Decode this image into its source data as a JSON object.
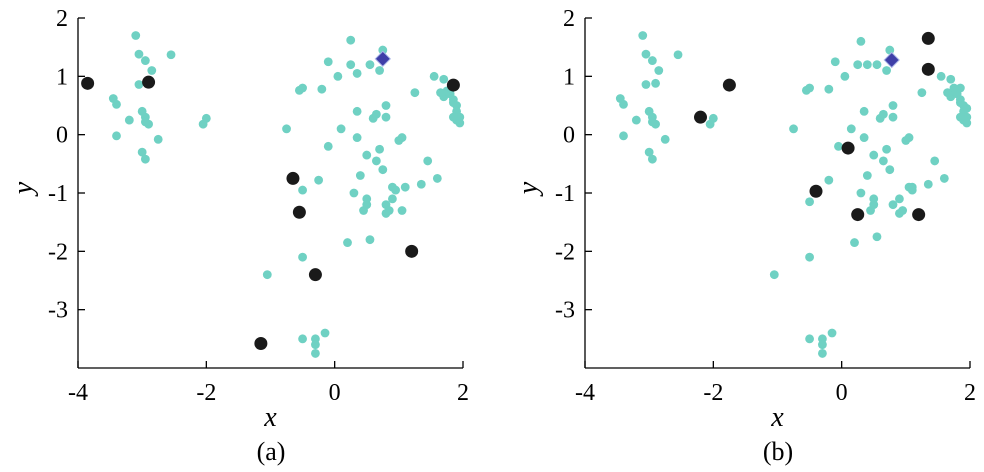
{
  "colors": {
    "background": "#dcf2ef",
    "open": "#ffffff",
    "points": "#6fd1c3",
    "selected": "#1a1a1a",
    "target": "#3f3fa8"
  },
  "chart_data": [
    {
      "type": "scatter",
      "caption": "(a)",
      "xlabel": "x",
      "ylabel": "y",
      "xlim": [
        -4,
        2
      ],
      "ylim": [
        -4,
        2
      ],
      "xticks": [
        -4,
        -2,
        0,
        2
      ],
      "xtick_labels": [
        "-4",
        "-2",
        "0",
        "2"
      ],
      "yticks": [
        2,
        1,
        0,
        -1,
        -2,
        -3
      ],
      "ytick_labels": [
        "2",
        "1",
        "0",
        "-1",
        "-2",
        "-3"
      ],
      "grid": false,
      "series": [
        {
          "role": "background-points",
          "marker": "small-circle",
          "points": [
            [
              -3.1,
              1.7
            ],
            [
              -3.05,
              1.38
            ],
            [
              -2.55,
              1.37
            ],
            [
              -2.95,
              1.27
            ],
            [
              -2.85,
              1.1
            ],
            [
              -3.05,
              0.86
            ],
            [
              -2.9,
              0.88
            ],
            [
              -3.45,
              0.62
            ],
            [
              -3.4,
              0.52
            ],
            [
              -3.0,
              0.4
            ],
            [
              -2.95,
              0.3
            ],
            [
              -2.9,
              0.18
            ],
            [
              -3.2,
              0.25
            ],
            [
              -2.95,
              0.22
            ],
            [
              -3.4,
              -0.02
            ],
            [
              -2.75,
              -0.08
            ],
            [
              -3.0,
              -0.3
            ],
            [
              -2.95,
              -0.42
            ],
            [
              -2.0,
              0.28
            ],
            [
              -2.05,
              0.18
            ],
            [
              -1.05,
              -2.4
            ],
            [
              -0.75,
              0.1
            ],
            [
              -0.55,
              0.76
            ],
            [
              -0.5,
              0.8
            ],
            [
              -0.5,
              -0.95
            ],
            [
              -0.5,
              -2.1
            ],
            [
              -0.2,
              0.78
            ],
            [
              -0.3,
              -3.5
            ],
            [
              -0.15,
              -3.4
            ],
            [
              -0.5,
              -3.5
            ],
            [
              -0.3,
              -3.6
            ],
            [
              -0.3,
              -3.75
            ],
            [
              -0.25,
              -0.78
            ],
            [
              -0.1,
              -0.2
            ],
            [
              0.1,
              0.1
            ],
            [
              0.2,
              -1.85
            ],
            [
              0.25,
              1.62
            ],
            [
              0.35,
              0.4
            ],
            [
              0.35,
              1.05
            ],
            [
              0.45,
              -1.3
            ],
            [
              0.5,
              -1.2
            ],
            [
              0.55,
              -1.8
            ],
            [
              0.5,
              -1.1
            ],
            [
              0.5,
              -0.35
            ],
            [
              0.55,
              1.2
            ],
            [
              0.6,
              0.28
            ],
            [
              0.7,
              -0.25
            ],
            [
              0.7,
              1.1
            ],
            [
              0.75,
              1.45
            ],
            [
              0.8,
              0.5
            ],
            [
              0.8,
              0.3
            ],
            [
              0.8,
              -1.2
            ],
            [
              0.8,
              -1.35
            ],
            [
              0.85,
              -1.3
            ],
            [
              0.9,
              -1.1
            ],
            [
              0.9,
              -0.9
            ],
            [
              0.95,
              -0.95
            ],
            [
              1.0,
              -0.1
            ],
            [
              1.05,
              -0.05
            ],
            [
              1.1,
              -0.9
            ],
            [
              1.25,
              0.72
            ],
            [
              1.35,
              -0.85
            ],
            [
              1.45,
              -0.45
            ],
            [
              1.55,
              1.0
            ],
            [
              1.6,
              -0.75
            ],
            [
              1.7,
              0.95
            ],
            [
              1.7,
              0.65
            ],
            [
              1.75,
              0.75
            ],
            [
              1.8,
              0.7
            ],
            [
              1.85,
              0.6
            ],
            [
              1.85,
              0.55
            ],
            [
              1.9,
              0.5
            ],
            [
              1.9,
              0.4
            ],
            [
              1.95,
              0.3
            ],
            [
              1.9,
              0.25
            ],
            [
              1.95,
              0.2
            ],
            [
              1.85,
              0.3
            ],
            [
              1.65,
              0.72
            ],
            [
              0.65,
              0.35
            ],
            [
              0.05,
              1.0
            ],
            [
              0.25,
              1.2
            ],
            [
              -0.1,
              1.25
            ],
            [
              0.65,
              -0.45
            ],
            [
              0.75,
              -0.6
            ],
            [
              0.4,
              -0.7
            ],
            [
              0.35,
              -0.05
            ],
            [
              1.05,
              -1.3
            ],
            [
              0.3,
              -1.0
            ]
          ]
        },
        {
          "role": "selected-points",
          "marker": "large-circle",
          "points": [
            [
              -3.85,
              0.88
            ],
            [
              -2.9,
              0.9
            ],
            [
              1.85,
              0.85
            ],
            [
              -0.65,
              -0.75
            ],
            [
              -0.55,
              -1.33
            ],
            [
              -0.3,
              -2.4
            ],
            [
              1.2,
              -2.0
            ],
            [
              -1.15,
              -3.58
            ]
          ]
        },
        {
          "role": "target-point",
          "marker": "diamond",
          "points": [
            [
              0.75,
              1.3
            ]
          ]
        }
      ]
    },
    {
      "type": "scatter",
      "caption": "(b)",
      "xlabel": "x",
      "ylabel": "y",
      "xlim": [
        -4,
        2
      ],
      "ylim": [
        -4,
        2
      ],
      "xticks": [
        -4,
        -2,
        0,
        2
      ],
      "xtick_labels": [
        "-4",
        "-2",
        "0",
        "2"
      ],
      "yticks": [
        2,
        1,
        0,
        -1,
        -2,
        -3
      ],
      "ytick_labels": [
        "2",
        "1",
        "0",
        "-1",
        "-2",
        "-3"
      ],
      "grid": false,
      "series": [
        {
          "role": "background-points",
          "marker": "small-circle",
          "points": [
            [
              -3.1,
              1.7
            ],
            [
              -3.05,
              1.38
            ],
            [
              -2.55,
              1.37
            ],
            [
              -2.95,
              1.27
            ],
            [
              -2.85,
              1.1
            ],
            [
              -3.05,
              0.86
            ],
            [
              -2.9,
              0.88
            ],
            [
              -3.45,
              0.62
            ],
            [
              -3.4,
              0.52
            ],
            [
              -3.0,
              0.4
            ],
            [
              -2.95,
              0.3
            ],
            [
              -2.9,
              0.18
            ],
            [
              -3.2,
              0.25
            ],
            [
              -2.95,
              0.22
            ],
            [
              -3.4,
              -0.02
            ],
            [
              -2.75,
              -0.08
            ],
            [
              -3.0,
              -0.3
            ],
            [
              -2.95,
              -0.42
            ],
            [
              -2.0,
              0.28
            ],
            [
              -2.05,
              0.18
            ],
            [
              -1.05,
              -2.4
            ],
            [
              -0.75,
              0.1
            ],
            [
              -0.55,
              0.76
            ],
            [
              -0.5,
              0.8
            ],
            [
              -0.5,
              -1.15
            ],
            [
              -0.5,
              -2.1
            ],
            [
              -0.2,
              0.78
            ],
            [
              -0.3,
              -3.5
            ],
            [
              -0.15,
              -3.4
            ],
            [
              -0.5,
              -3.5
            ],
            [
              -0.3,
              -3.6
            ],
            [
              -0.3,
              -3.75
            ],
            [
              -0.2,
              -0.78
            ],
            [
              -0.05,
              -0.2
            ],
            [
              0.15,
              0.1
            ],
            [
              0.2,
              -1.85
            ],
            [
              0.3,
              1.6
            ],
            [
              0.35,
              0.4
            ],
            [
              0.4,
              1.2
            ],
            [
              0.45,
              -1.3
            ],
            [
              0.5,
              -1.2
            ],
            [
              0.55,
              -1.75
            ],
            [
              0.5,
              -1.1
            ],
            [
              0.5,
              -0.35
            ],
            [
              0.55,
              1.2
            ],
            [
              0.6,
              0.28
            ],
            [
              0.7,
              -0.25
            ],
            [
              0.7,
              1.1
            ],
            [
              0.75,
              1.45
            ],
            [
              0.8,
              0.5
            ],
            [
              0.8,
              0.3
            ],
            [
              0.8,
              -1.2
            ],
            [
              0.9,
              -1.35
            ],
            [
              0.9,
              -1.1
            ],
            [
              1.05,
              -0.9
            ],
            [
              1.1,
              -0.95
            ],
            [
              1.0,
              -0.1
            ],
            [
              1.05,
              -0.05
            ],
            [
              1.1,
              -0.9
            ],
            [
              1.25,
              0.72
            ],
            [
              1.35,
              -0.85
            ],
            [
              1.45,
              -0.45
            ],
            [
              1.55,
              1.0
            ],
            [
              1.6,
              -0.75
            ],
            [
              1.7,
              0.95
            ],
            [
              1.7,
              0.65
            ],
            [
              1.75,
              0.75
            ],
            [
              1.8,
              0.7
            ],
            [
              1.85,
              0.6
            ],
            [
              1.85,
              0.55
            ],
            [
              1.9,
              0.5
            ],
            [
              1.9,
              0.4
            ],
            [
              1.95,
              0.3
            ],
            [
              1.9,
              0.25
            ],
            [
              1.95,
              0.2
            ],
            [
              1.85,
              0.3
            ],
            [
              1.65,
              0.72
            ],
            [
              0.65,
              0.35
            ],
            [
              0.05,
              1.0
            ],
            [
              0.25,
              1.2
            ],
            [
              -0.1,
              1.25
            ],
            [
              0.65,
              -0.45
            ],
            [
              0.75,
              -0.6
            ],
            [
              0.4,
              -0.7
            ],
            [
              0.35,
              -0.05
            ],
            [
              0.95,
              -1.3
            ],
            [
              0.3,
              -1.0
            ],
            [
              1.95,
              0.45
            ],
            [
              1.85,
              0.8
            ],
            [
              1.75,
              0.8
            ]
          ]
        },
        {
          "role": "selected-points",
          "marker": "large-circle",
          "points": [
            [
              1.35,
              1.65
            ],
            [
              1.35,
              1.12
            ],
            [
              -1.75,
              0.85
            ],
            [
              -2.2,
              0.3
            ],
            [
              0.1,
              -0.23
            ],
            [
              -0.4,
              -0.97
            ],
            [
              0.25,
              -1.37
            ],
            [
              1.2,
              -1.37
            ]
          ]
        },
        {
          "role": "target-point",
          "marker": "diamond",
          "points": [
            [
              0.78,
              1.28
            ]
          ]
        }
      ]
    }
  ]
}
